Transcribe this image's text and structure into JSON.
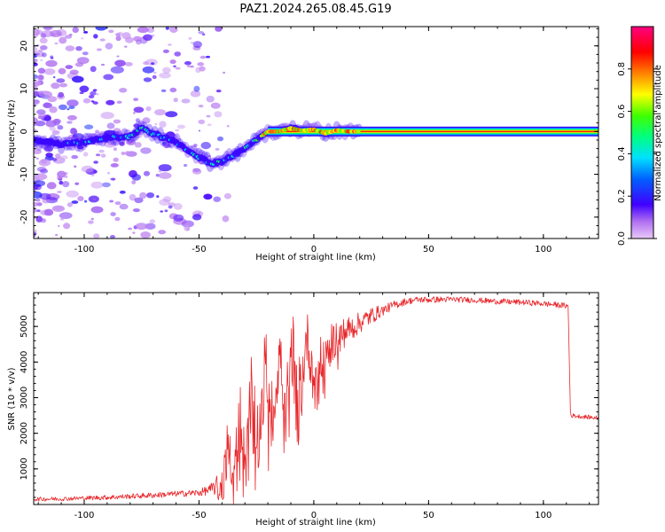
{
  "title": "PAZ1.2024.265.08.45.G19",
  "colors": {
    "snr_line": "#e8262a",
    "ridge_core": "#ff2a4a",
    "ridge_edge": "#5a00e0",
    "noise": "#b58cf2"
  },
  "chart_data": [
    {
      "type": "heatmap",
      "xlabel": "Height of straight line (km)",
      "ylabel": "Frequency (Hz)",
      "xlim": [
        -122,
        124
      ],
      "ylim": [
        -25,
        24.5
      ],
      "xticks": [
        -100,
        -50,
        0,
        50,
        100
      ],
      "yticks": [
        -20,
        -10,
        0,
        10,
        20
      ],
      "grid": false,
      "colorbar": {
        "label": "Normalized spectral amplitude",
        "range": [
          0,
          1
        ],
        "ticks": [
          0.0,
          0.2,
          0.4,
          0.6,
          0.8
        ],
        "tick_labels": [
          "0.0",
          "0.2",
          "0.4",
          "0.6",
          "0.8"
        ],
        "colormap": "rainbow (magenta-blue-cyan-green-yellow-red-pink)"
      },
      "ridge": {
        "height_km": [
          -122,
          -110,
          -100,
          -90,
          -80,
          -75,
          -70,
          -60,
          -50,
          -45,
          -40,
          -35,
          -30,
          -25,
          -20,
          -15,
          -10,
          -5,
          0,
          5,
          10,
          15,
          20,
          50,
          80,
          112,
          124
        ],
        "frequency_hz": [
          -2,
          -3,
          -2.5,
          -1.5,
          -1.2,
          0.8,
          -0.5,
          -2.5,
          -6,
          -7.5,
          -7,
          -5.5,
          -4,
          -2,
          0,
          0,
          0.8,
          0.2,
          0.5,
          -0.5,
          0.3,
          0,
          0,
          0,
          0,
          0,
          0
        ],
        "amplitude": [
          0.3,
          0.35,
          0.4,
          0.4,
          0.45,
          0.55,
          0.45,
          0.45,
          0.45,
          0.5,
          0.5,
          0.5,
          0.55,
          0.6,
          0.75,
          0.8,
          0.8,
          0.8,
          0.85,
          0.85,
          0.9,
          0.95,
          1.0,
          1.0,
          1.0,
          1.0,
          1.0
        ]
      }
    },
    {
      "type": "line",
      "xlabel": "Height of straight line (km)",
      "ylabel": "SNR (10 * v/v)",
      "xlim": [
        -122,
        124
      ],
      "ylim": [
        0,
        5950
      ],
      "xticks": [
        -100,
        -50,
        0,
        50,
        100
      ],
      "yticks": [
        1000,
        2000,
        3000,
        4000,
        5000
      ],
      "grid": false,
      "series": [
        {
          "color": "#e8262a",
          "x": [
            -122,
            -110,
            -100,
            -90,
            -80,
            -70,
            -60,
            -50,
            -45,
            -40,
            -38,
            -35,
            -32,
            -30,
            -27,
            -24,
            -21,
            -18,
            -15,
            -12,
            -9,
            -6,
            -3,
            0,
            5,
            10,
            15,
            20,
            25,
            30,
            35,
            40,
            45,
            50,
            60,
            70,
            80,
            90,
            100,
            110,
            111,
            112,
            115,
            120,
            124
          ],
          "y": [
            150,
            160,
            180,
            200,
            230,
            260,
            300,
            330,
            420,
            600,
            2000,
            800,
            2500,
            1200,
            3400,
            1800,
            4000,
            2400,
            4300,
            2800,
            4500,
            3200,
            4700,
            3600,
            4300,
            4700,
            4900,
            5100,
            5300,
            5450,
            5600,
            5700,
            5750,
            5750,
            5760,
            5740,
            5700,
            5680,
            5640,
            5580,
            5550,
            2500,
            2480,
            2450,
            2430
          ],
          "noise_amplitude": [
            60,
            60,
            60,
            70,
            70,
            80,
            80,
            100,
            150,
            400,
            800,
            600,
            900,
            700,
            1100,
            900,
            1200,
            1000,
            1100,
            1000,
            900,
            900,
            800,
            800,
            600,
            500,
            400,
            300,
            250,
            150,
            120,
            100,
            90,
            90,
            80,
            80,
            80,
            80,
            80,
            80,
            80,
            60,
            60,
            60,
            60
          ]
        }
      ]
    }
  ]
}
